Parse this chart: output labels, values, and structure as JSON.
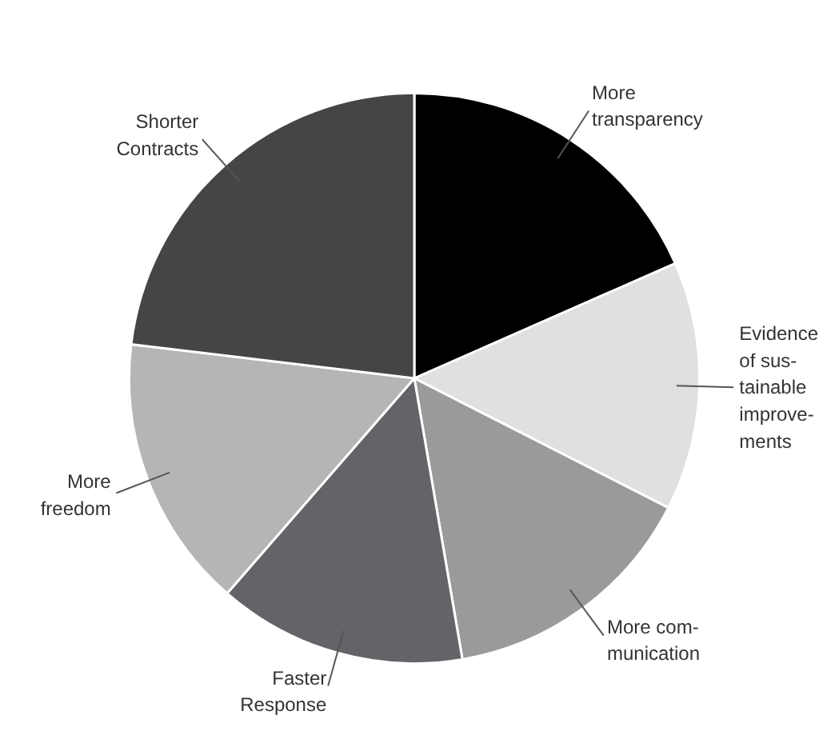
{
  "chart_data": {
    "type": "pie",
    "categories": [
      "More\ntransparency",
      "Evidence\nof sus-\ntainable\nimprove-\nments",
      "More com-\nmunication",
      "Faster\nResponse",
      "More\nfreedom",
      "Shorter\nContracts"
    ],
    "values": [
      18.4,
      14.1,
      14.8,
      14.1,
      15.5,
      23.1
    ],
    "colors": [
      "#000000",
      "#e0e0e0",
      "#999a9c",
      "#636467",
      "#b4b5b6",
      "#454547"
    ]
  }
}
